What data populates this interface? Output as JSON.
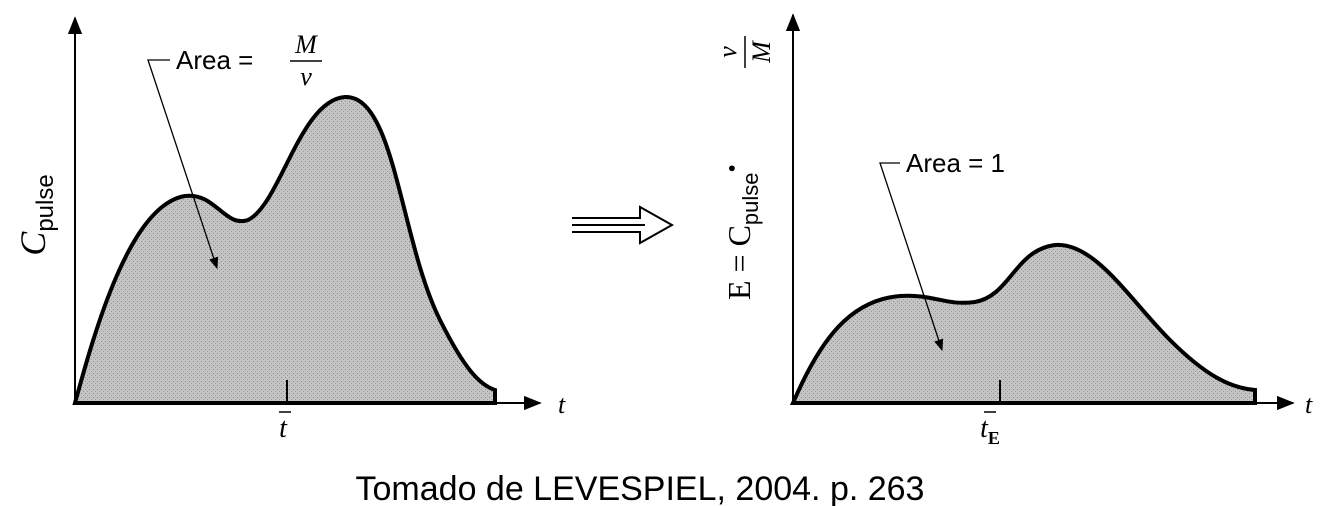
{
  "left_panel": {
    "y_label": {
      "symbol": "C",
      "subscript": "pulse"
    },
    "annotation": {
      "text": "Area =",
      "numerator": "M",
      "denominator": "v"
    },
    "x_label": "t",
    "mean_label": "t"
  },
  "right_panel": {
    "y_label": {
      "lhs": "E = C",
      "subscript": "pulse",
      "dot": "•",
      "numerator": "v",
      "denominator": "M"
    },
    "annotation": "Area = 1",
    "x_label": "t",
    "mean_label": {
      "symbol": "t",
      "subscript": "E"
    }
  },
  "caption": "Tomado de LEVESPIEL, 2004. p. 263"
}
